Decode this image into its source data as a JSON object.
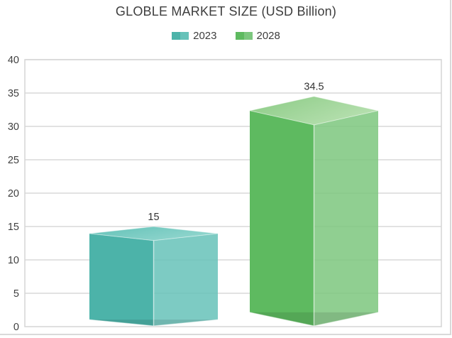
{
  "chart_data": {
    "type": "bar",
    "variant": "3d-column",
    "title": "GLOBLE MARKET SIZE (USD Billion)",
    "series": [
      {
        "name": "2023",
        "value": 15,
        "colors": {
          "left": "#4cb3a9",
          "right": "#66c2b9",
          "top_from": "#62c1b7",
          "top_to": "#92d6ce"
        }
      },
      {
        "name": "2028",
        "value": 34.5,
        "colors": {
          "left": "#5eba60",
          "right": "#7cc77e",
          "top_from": "#8bcb85",
          "top_to": "#b7e0b0"
        }
      }
    ],
    "ylim": [
      0,
      40
    ],
    "yticks": [
      0,
      5,
      10,
      15,
      20,
      25,
      30,
      35,
      40
    ],
    "grid": true,
    "legend_position": "top",
    "colors": {
      "grid": "#d9d9d9",
      "plot_border": "#d7d7d7",
      "axis_text": "#3f3f3f",
      "label_text": "#333333",
      "background": "#ffffff",
      "container_border": "#d9d9d9"
    }
  }
}
